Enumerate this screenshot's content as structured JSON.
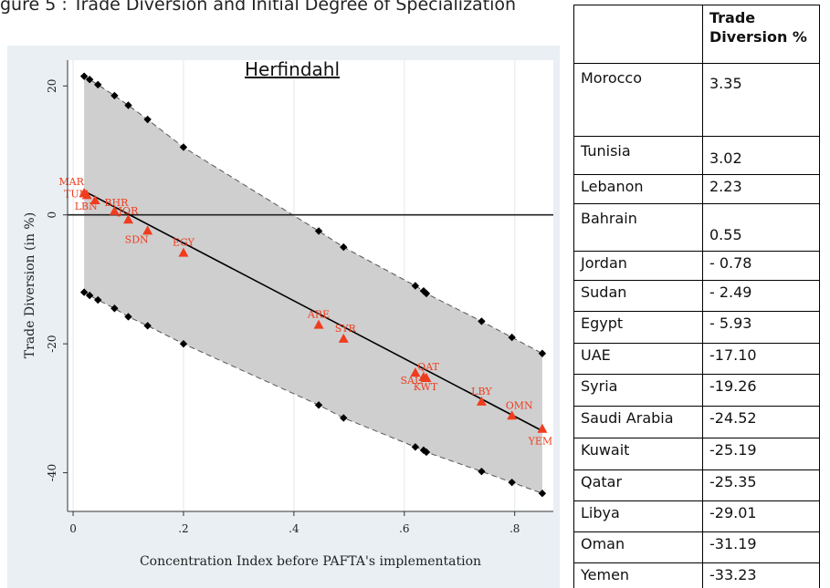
{
  "caption_text": "gure 5 : Trade Diversion and Initial Degree of Specialization",
  "chart_data": {
    "type": "scatter",
    "title": "Herfindahl",
    "xlabel": "Concentration Index before PAFTA's implementation",
    "ylabel": "Trade Diversion (in %)",
    "xlim": [
      -0.01,
      0.87
    ],
    "ylim": [
      -46,
      24
    ],
    "xticks": [
      0,
      0.2,
      0.4,
      0.6,
      0.8
    ],
    "xtick_labels": [
      "0",
      ".2",
      ".4",
      ".6",
      ".8"
    ],
    "yticks": [
      20,
      0,
      -20,
      -40
    ],
    "ytick_labels": [
      "20",
      "0",
      "-20",
      "-40"
    ],
    "grid": "vertical",
    "reference_line_y": 0,
    "fit_line": {
      "x": [
        0.02,
        0.85
      ],
      "y": [
        3.7,
        -33.5
      ]
    },
    "band_upper": {
      "x": [
        0.02,
        0.03,
        0.045,
        0.075,
        0.1,
        0.135,
        0.2,
        0.445,
        0.49,
        0.62,
        0.635,
        0.64,
        0.74,
        0.795,
        0.85
      ],
      "y": [
        21.5,
        21.0,
        20.2,
        18.5,
        17.0,
        14.8,
        10.5,
        -2.5,
        -5.0,
        -11.0,
        -11.8,
        -12.2,
        -16.5,
        -19.0,
        -21.5
      ]
    },
    "band_lower": {
      "x": [
        0.02,
        0.03,
        0.045,
        0.075,
        0.1,
        0.135,
        0.2,
        0.445,
        0.49,
        0.62,
        0.635,
        0.64,
        0.74,
        0.795,
        0.85
      ],
      "y": [
        -12.0,
        -12.5,
        -13.2,
        -14.5,
        -15.8,
        -17.2,
        -20.0,
        -29.5,
        -31.5,
        -36.0,
        -36.5,
        -36.8,
        -39.8,
        -41.5,
        -43.2
      ]
    },
    "points": [
      {
        "label": "MAR",
        "x": 0.02,
        "y": 3.35
      },
      {
        "label": "TUN",
        "x": 0.025,
        "y": 3.02
      },
      {
        "label": "LBN",
        "x": 0.04,
        "y": 2.23
      },
      {
        "label": "BHR",
        "x": 0.075,
        "y": 0.55
      },
      {
        "label": "JOR",
        "x": 0.1,
        "y": -0.78
      },
      {
        "label": "SDN",
        "x": 0.135,
        "y": -2.49
      },
      {
        "label": "EGY",
        "x": 0.2,
        "y": -5.93
      },
      {
        "label": "ARE",
        "x": 0.445,
        "y": -17.1
      },
      {
        "label": "SYR",
        "x": 0.49,
        "y": -19.26
      },
      {
        "label": "SAU",
        "x": 0.62,
        "y": -24.52
      },
      {
        "label": "KWT",
        "x": 0.635,
        "y": -25.19
      },
      {
        "label": "QAT",
        "x": 0.64,
        "y": -25.35
      },
      {
        "label": "LBY",
        "x": 0.74,
        "y": -29.01
      },
      {
        "label": "OMN",
        "x": 0.795,
        "y": -31.19
      },
      {
        "label": "YEM",
        "x": 0.85,
        "y": -33.23
      }
    ],
    "colors": {
      "band": "#cfcfcf",
      "points": "#f03c1e",
      "fit": "#000000",
      "band_markers": "#000000",
      "background": "#e9eff3",
      "plot_area": "#ffffff"
    }
  },
  "table": {
    "header_value": "Trade Diversion %",
    "rows": [
      {
        "country": "Morocco",
        "value": "3.35"
      },
      {
        "country": "Tunisia",
        "value": "3.02"
      },
      {
        "country": "Lebanon",
        "value": "2.23"
      },
      {
        "country": "Bahrain",
        "value": "0.55"
      },
      {
        "country": "Jordan",
        "value": "- 0.78"
      },
      {
        "country": "Sudan",
        "value": "- 2.49"
      },
      {
        "country": "Egypt",
        "value": "- 5.93"
      },
      {
        "country": "UAE",
        "value": "-17.10"
      },
      {
        "country": "Syria",
        "value": "-19.26"
      },
      {
        "country": "Saudi Arabia",
        "value": "-24.52"
      },
      {
        "country": "Kuwait",
        "value": "-25.19"
      },
      {
        "country": "Qatar",
        "value": "-25.35"
      },
      {
        "country": "Libya",
        "value": "-29.01"
      },
      {
        "country": "Oman",
        "value": "-31.19"
      },
      {
        "country": "Yemen",
        "value": "-33.23"
      }
    ]
  }
}
